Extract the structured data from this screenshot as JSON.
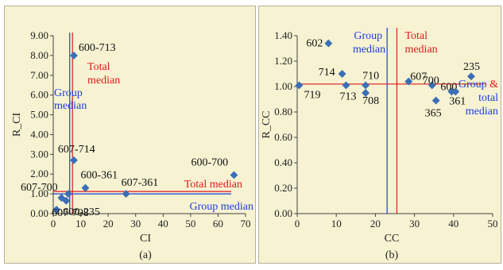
{
  "chart_data": [
    {
      "type": "scatter",
      "panel_label": "(a)",
      "xlabel": "CI",
      "ylabel": "R_CI",
      "xlim": [
        0,
        70
      ],
      "ylim": [
        0,
        9
      ],
      "xticks": [
        "0",
        "10",
        "20",
        "30",
        "40",
        "50",
        "60",
        "70"
      ],
      "yticks": [
        "0.00",
        "1.00",
        "2.00",
        "3.00",
        "4.00",
        "5.00",
        "6.00",
        "7.00",
        "8.00",
        "9.00"
      ],
      "points": [
        {
          "x": 7.5,
          "y": 8.0,
          "label": "600-713"
        },
        {
          "x": 7.5,
          "y": 2.7,
          "label": "607-714"
        },
        {
          "x": 11.7,
          "y": 1.3,
          "label": "600-361"
        },
        {
          "x": 26.5,
          "y": 1.0,
          "label": "607-361"
        },
        {
          "x": 65.8,
          "y": 1.95,
          "label": "600-700"
        },
        {
          "x": 5.5,
          "y": 1.0,
          "label": "607-700"
        },
        {
          "x": 3.0,
          "y": 0.8,
          "label": ""
        },
        {
          "x": 4.7,
          "y": 0.65,
          "label": "600-235"
        },
        {
          "x": 1.2,
          "y": 0.2,
          "label": "607-708"
        }
      ],
      "vlines": [
        {
          "x": 6.0,
          "color": "#1f3ee0",
          "label": "Group\nmedian"
        },
        {
          "x": 7.0,
          "color": "#e01a1a",
          "label": "Total\nmedian"
        }
      ],
      "hlines": [
        {
          "y": 1.12,
          "color": "#e01a1a",
          "label": "Total median"
        },
        {
          "y": 1.0,
          "color": "#1f3ee0",
          "label": "Group median"
        }
      ]
    },
    {
      "type": "scatter",
      "panel_label": "(b)",
      "xlabel": "CC",
      "ylabel": "R_CC",
      "xlim": [
        0,
        50
      ],
      "ylim": [
        0,
        1.4
      ],
      "xticks": [
        "0",
        "10",
        "20",
        "30",
        "40",
        "50"
      ],
      "yticks": [
        "0.00",
        "0.20",
        "0.40",
        "0.60",
        "0.80",
        "1.00",
        "1.20",
        "1.40"
      ],
      "points": [
        {
          "x": 8.0,
          "y": 1.34,
          "label": "602"
        },
        {
          "x": 11.5,
          "y": 1.1,
          "label": "714"
        },
        {
          "x": 0.5,
          "y": 1.01,
          "label": "719"
        },
        {
          "x": 12.5,
          "y": 1.01,
          "label": "713"
        },
        {
          "x": 17.5,
          "y": 1.01,
          "label": "710"
        },
        {
          "x": 17.5,
          "y": 0.95,
          "label": "708"
        },
        {
          "x": 28.5,
          "y": 1.04,
          "label": "607"
        },
        {
          "x": 34.5,
          "y": 1.01,
          "label": "700"
        },
        {
          "x": 35.5,
          "y": 0.89,
          "label": "365"
        },
        {
          "x": 39.5,
          "y": 0.96,
          "label": "600"
        },
        {
          "x": 40.5,
          "y": 0.96,
          "label": "361"
        },
        {
          "x": 44.5,
          "y": 1.08,
          "label": "235"
        }
      ],
      "vlines": [
        {
          "x": 23.0,
          "color": "#1f3ee0",
          "label": "Group\nmedian"
        },
        {
          "x": 25.5,
          "color": "#e01a1a",
          "label": "Total\nmedian"
        }
      ],
      "hlines": [
        {
          "y": 1.02,
          "color": "#e01a1a",
          "label": ""
        }
      ],
      "corner_label": {
        "line1": "Group &",
        "line2": "total",
        "line3": "median",
        "color": "#1f3ee0",
        "amp_color": "#e01a1a"
      }
    }
  ],
  "colors": {
    "point": "#3a6fb5",
    "background": "#f6f2d2",
    "axis": "#333333"
  }
}
